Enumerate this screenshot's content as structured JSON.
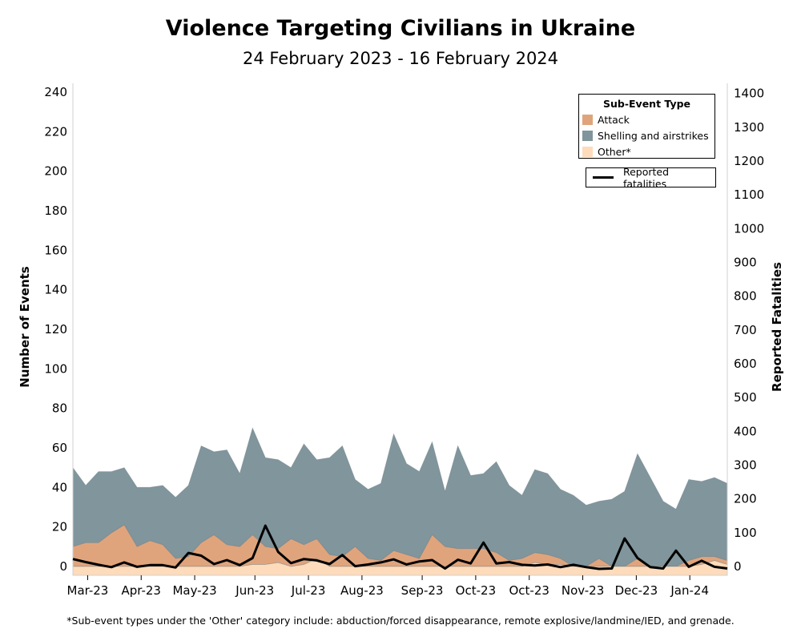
{
  "title": "Violence Targeting Civilians in Ukraine",
  "subtitle": "24 February 2023 - 16 February 2024",
  "footnote": "*Sub-event types under the 'Other' category include: abduction/forced disappearance, remote explosive/landmine/IED, and grenade.",
  "colors": {
    "attack": "#e0a47c",
    "shelling": "#80959c",
    "other": "#fddbbb",
    "fatalities": "#000000"
  },
  "chart_data": {
    "type": "area",
    "xlabel": "",
    "ylabel": "Number of Events",
    "y2label": "Reported Fatalities",
    "ylim": [
      0,
      245
    ],
    "y2lim": [
      0,
      1450
    ],
    "y_ticks": [
      0,
      20,
      40,
      60,
      80,
      100,
      120,
      140,
      160,
      180,
      200,
      220,
      240
    ],
    "y2_ticks": [
      0,
      100,
      200,
      300,
      400,
      500,
      600,
      700,
      800,
      900,
      1000,
      1100,
      1200,
      1300,
      1400
    ],
    "x_tick_labels": [
      {
        "label": "Mar-23",
        "x": 2023.17
      },
      {
        "label": "Apr-23",
        "x": 2023.25
      },
      {
        "label": "May-23",
        "x": 2023.33
      },
      {
        "label": "Jun-23",
        "x": 2023.42
      },
      {
        "label": "Jul-23",
        "x": 2023.5
      },
      {
        "label": "Aug-23",
        "x": 2023.58
      },
      {
        "label": "Sep-23",
        "x": 2023.67
      },
      {
        "label": "Oct-23",
        "x": 2023.75
      },
      {
        "label": "Oct-23",
        "x": 2023.83
      },
      {
        "label": "Nov-23",
        "x": 2023.91
      },
      {
        "label": "Dec-23",
        "x": 2023.99
      },
      {
        "label": "Jan-24",
        "x": 2024.07
      }
    ],
    "legend_title": "Sub-Event Type",
    "legend_position": "top-right",
    "grid": false,
    "x": [
      "2023-02-24",
      "2023-03-03",
      "2023-03-10",
      "2023-03-17",
      "2023-03-24",
      "2023-03-31",
      "2023-04-07",
      "2023-04-14",
      "2023-04-21",
      "2023-04-28",
      "2023-05-05",
      "2023-05-12",
      "2023-05-19",
      "2023-05-26",
      "2023-06-02",
      "2023-06-09",
      "2023-06-16",
      "2023-06-23",
      "2023-06-30",
      "2023-07-07",
      "2023-07-14",
      "2023-07-21",
      "2023-07-28",
      "2023-08-04",
      "2023-08-11",
      "2023-08-18",
      "2023-08-25",
      "2023-09-01",
      "2023-09-08",
      "2023-09-15",
      "2023-09-22",
      "2023-09-29",
      "2023-10-06",
      "2023-10-13",
      "2023-10-20",
      "2023-10-27",
      "2023-11-03",
      "2023-11-10",
      "2023-11-17",
      "2023-11-24",
      "2023-12-01",
      "2023-12-08",
      "2023-12-15",
      "2023-12-22",
      "2023-12-29",
      "2024-01-05",
      "2024-01-12",
      "2024-01-19",
      "2024-01-26",
      "2024-02-02",
      "2024-02-09",
      "2024-02-16"
    ],
    "series": [
      {
        "name": "Other*",
        "kind": "area",
        "values": [
          0,
          0,
          0,
          0,
          0,
          0,
          0,
          0,
          0,
          0,
          0,
          0,
          0,
          0,
          1,
          1,
          2,
          0,
          1,
          4,
          0,
          0,
          0,
          0,
          0,
          0,
          0,
          0,
          0,
          0,
          0,
          0,
          0,
          0,
          0,
          0,
          2,
          1,
          1,
          0,
          0,
          0,
          0,
          0,
          0,
          0,
          0,
          0,
          0,
          1,
          3,
          1
        ]
      },
      {
        "name": "Attack",
        "kind": "area",
        "values": [
          10,
          12,
          12,
          17,
          21,
          10,
          13,
          11,
          4,
          5,
          12,
          16,
          11,
          10,
          15,
          9,
          7,
          14,
          10,
          10,
          6,
          5,
          10,
          4,
          3,
          8,
          6,
          4,
          16,
          10,
          9,
          9,
          9,
          7,
          3,
          4,
          5,
          5,
          3,
          0,
          0,
          4,
          0,
          0,
          4,
          0,
          0,
          0,
          3,
          4,
          2,
          2
        ]
      },
      {
        "name": "Shelling and airstrikes",
        "kind": "area",
        "values": [
          40,
          29,
          36,
          31,
          29,
          30,
          27,
          30,
          31,
          36,
          49,
          42,
          48,
          37,
          54,
          45,
          45,
          36,
          51,
          40,
          49,
          56,
          34,
          35,
          39,
          59,
          46,
          44,
          47,
          28,
          52,
          37,
          38,
          46,
          38,
          32,
          42,
          41,
          35,
          36,
          31,
          29,
          34,
          38,
          53,
          45,
          33,
          29,
          41,
          38,
          40,
          39
        ]
      },
      {
        "name": "Reported fatalities",
        "kind": "line",
        "axis": "right",
        "values": [
          22,
          13,
          5,
          -2,
          12,
          -1,
          4,
          4,
          -3,
          40,
          32,
          7,
          19,
          4,
          25,
          121,
          43,
          10,
          22,
          18,
          7,
          34,
          1,
          6,
          12,
          21,
          6,
          15,
          19,
          -6,
          20,
          9,
          71,
          9,
          13,
          5,
          3,
          6,
          -2,
          5,
          -2,
          -7,
          -6,
          83,
          25,
          -2,
          -6,
          47,
          -1,
          17,
          -1,
          -6
        ]
      }
    ]
  },
  "legend": {
    "title": "Sub-Event Type",
    "items": [
      {
        "label": "Attack",
        "color": "#e0a47c"
      },
      {
        "label": "Shelling and airstrikes",
        "color": "#80959c"
      },
      {
        "label": "Other*",
        "color": "#fddbbb"
      }
    ],
    "line_label": "Reported fatalities"
  }
}
